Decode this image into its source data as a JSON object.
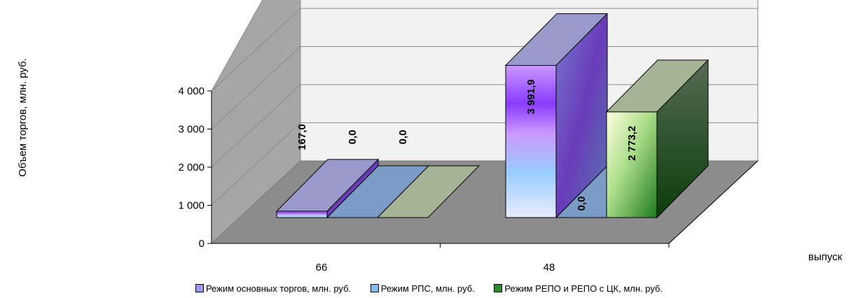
{
  "chart_data": {
    "type": "bar",
    "ylabel": "Объем торгов, млн. руб.",
    "xlabel": "выпуск",
    "categories": [
      "66",
      "48"
    ],
    "ylim": [
      0,
      4000
    ],
    "yticks": [
      "0",
      "1 000",
      "2 000",
      "3 000",
      "4 000"
    ],
    "grid": true,
    "legend_position": "bottom",
    "series": [
      {
        "name": "Режим основных торгов, млн. руб.",
        "values": [
          167.0,
          3991.9
        ],
        "labels": [
          "167,0",
          "3 991,9"
        ],
        "color": "#9999ee"
      },
      {
        "name": "Режим РПС, млн. руб.",
        "values": [
          0.0,
          0.0
        ],
        "labels": [
          "0,0",
          "0,0"
        ],
        "color": "#7799cc"
      },
      {
        "name": "Режим РЕПО и РЕПО с ЦК, млн. руб.",
        "values": [
          0.0,
          2773.2
        ],
        "labels": [
          "0,0",
          "2 773,2"
        ],
        "color": "#2e8b2e"
      }
    ]
  }
}
